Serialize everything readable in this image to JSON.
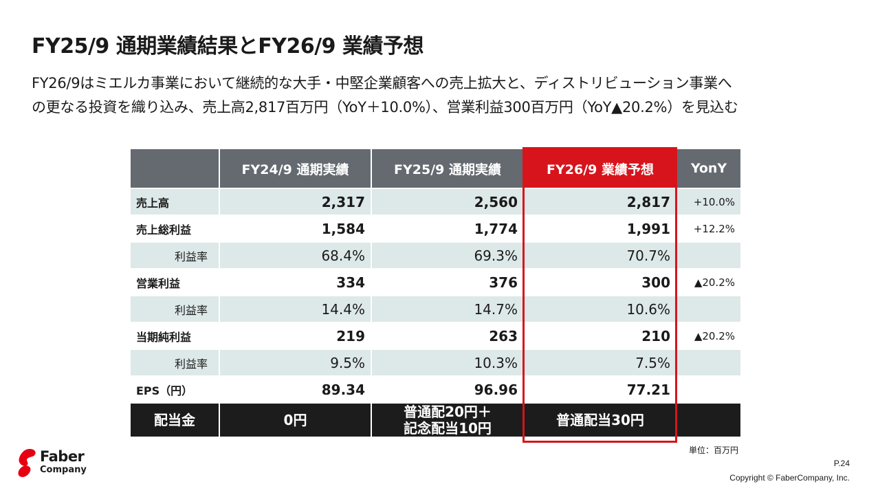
{
  "title": "FY25/9 通期業績結果とFY26/9 業績予想",
  "description": {
    "line1": "FY26/9はミエルカ事業において継続的な大手・中堅企業顧客への売上拡大と、ディストリビューション事業へ",
    "line2": "の更なる投資を織り込み、売上高2,817百万円（YoY＋10.0%）、営業利益300百万円（YoY▲20.2%）を見込む"
  },
  "table": {
    "headers": [
      "",
      "FY24/9 通期実績",
      "FY25/9 通期実績",
      "FY26/9 業績予想",
      "YonY"
    ],
    "rows": [
      {
        "label": "売上高",
        "values": [
          "2,317",
          "2,560",
          "2,817"
        ],
        "yoy": "+10.0%"
      },
      {
        "label": "売上総利益",
        "values": [
          "1,584",
          "1,774",
          "1,991"
        ],
        "yoy": "+12.2%"
      },
      {
        "label": "利益率",
        "values": [
          "68.4%",
          "69.3%",
          "70.7%"
        ],
        "yoy": ""
      },
      {
        "label": "営業利益",
        "values": [
          "334",
          "376",
          "300"
        ],
        "yoy": "▲20.2%"
      },
      {
        "label": "利益率",
        "values": [
          "14.4%",
          "14.7%",
          "10.6%"
        ],
        "yoy": ""
      },
      {
        "label": "当期純利益",
        "values": [
          "219",
          "263",
          "210"
        ],
        "yoy": "▲20.2%"
      },
      {
        "label": "利益率",
        "values": [
          "9.5%",
          "10.3%",
          "7.5%"
        ],
        "yoy": ""
      },
      {
        "label": "EPS（円）",
        "values": [
          "89.34",
          "96.96",
          "77.21"
        ],
        "yoy": ""
      }
    ],
    "dividend": {
      "label": "配当金",
      "fy24": "0円",
      "fy25_line1": "普通配20円＋",
      "fy25_line2": "記念配当10円",
      "fy26": "普通配当30円",
      "yoy": ""
    },
    "highlight_color": "#d7141c",
    "header_color": "#646a70",
    "alt_row_color": "#dde8e8"
  },
  "unit_note": "単位：百万円",
  "logo": {
    "name": "Faber",
    "sub": "Company",
    "color": "#e60012"
  },
  "page_number": "P.24",
  "copyright": "Copyright © FaberCompany, Inc."
}
